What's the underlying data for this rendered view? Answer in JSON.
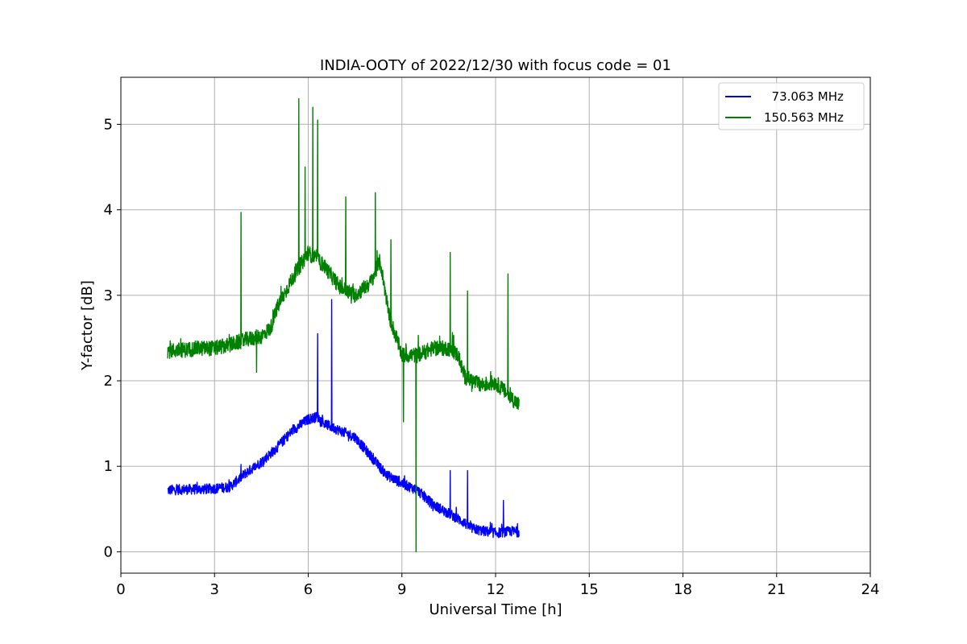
{
  "chart_data": {
    "type": "line",
    "title": "INDIA-OOTY of 2022/12/30 with focus code = 01",
    "xlabel": "Universal Time [h]",
    "ylabel": "Y-factor [dB]",
    "xlim": [
      0,
      24
    ],
    "ylim": [
      -0.25,
      5.55
    ],
    "x_ticks": [
      0,
      3,
      6,
      9,
      12,
      15,
      18,
      21,
      24
    ],
    "y_ticks": [
      0,
      1,
      2,
      3,
      4,
      5
    ],
    "grid": true,
    "legend_position": "top-right",
    "series": [
      {
        "name": "  73.063 MHz",
        "color": "#0000ff",
        "x": [
          1.5,
          2.0,
          2.5,
          3.0,
          3.5,
          4.0,
          4.5,
          5.0,
          5.5,
          6.0,
          6.3,
          6.5,
          6.75,
          7.0,
          7.5,
          8.0,
          8.5,
          9.0,
          9.5,
          10.0,
          10.5,
          11.0,
          11.2,
          11.5,
          12.0,
          12.5,
          12.75
        ],
        "y": [
          0.72,
          0.73,
          0.73,
          0.74,
          0.76,
          0.92,
          1.05,
          1.22,
          1.42,
          1.55,
          1.58,
          1.5,
          1.46,
          1.42,
          1.34,
          1.12,
          0.9,
          0.8,
          0.72,
          0.55,
          0.45,
          0.34,
          0.28,
          0.25,
          0.22,
          0.24,
          0.23
        ],
        "spikes": [
          {
            "x": 6.3,
            "y": 2.55
          },
          {
            "x": 6.75,
            "y": 2.95
          },
          {
            "x": 10.55,
            "y": 0.95
          },
          {
            "x": 11.1,
            "y": 0.95
          },
          {
            "x": 12.25,
            "y": 0.6
          }
        ],
        "noise": 0.06
      },
      {
        "name": "150.563 MHz",
        "color": "#008000",
        "x": [
          1.5,
          2.0,
          2.5,
          3.0,
          3.5,
          4.0,
          4.5,
          4.8,
          5.0,
          5.5,
          6.0,
          6.5,
          7.0,
          7.5,
          8.0,
          8.3,
          8.6,
          9.0,
          9.5,
          10.0,
          10.5,
          10.8,
          11.0,
          11.5,
          12.0,
          12.5,
          12.75
        ],
        "y": [
          2.35,
          2.36,
          2.38,
          2.38,
          2.42,
          2.48,
          2.52,
          2.62,
          2.85,
          3.2,
          3.5,
          3.35,
          3.1,
          3.0,
          3.15,
          3.4,
          2.75,
          2.3,
          2.3,
          2.38,
          2.38,
          2.3,
          2.05,
          1.95,
          1.98,
          1.8,
          1.72
        ],
        "spikes": [
          {
            "x": 3.85,
            "y": 3.97
          },
          {
            "x": 4.35,
            "y": 2.1
          },
          {
            "x": 5.7,
            "y": 5.3
          },
          {
            "x": 5.9,
            "y": 4.5
          },
          {
            "x": 6.15,
            "y": 5.2
          },
          {
            "x": 6.3,
            "y": 5.05
          },
          {
            "x": 7.2,
            "y": 4.15
          },
          {
            "x": 8.15,
            "y": 4.2
          },
          {
            "x": 8.65,
            "y": 3.65
          },
          {
            "x": 9.05,
            "y": 1.52
          },
          {
            "x": 9.45,
            "y": 0.0
          },
          {
            "x": 10.55,
            "y": 3.5
          },
          {
            "x": 11.1,
            "y": 3.05
          },
          {
            "x": 12.4,
            "y": 3.25
          }
        ],
        "noise": 0.09
      }
    ]
  }
}
